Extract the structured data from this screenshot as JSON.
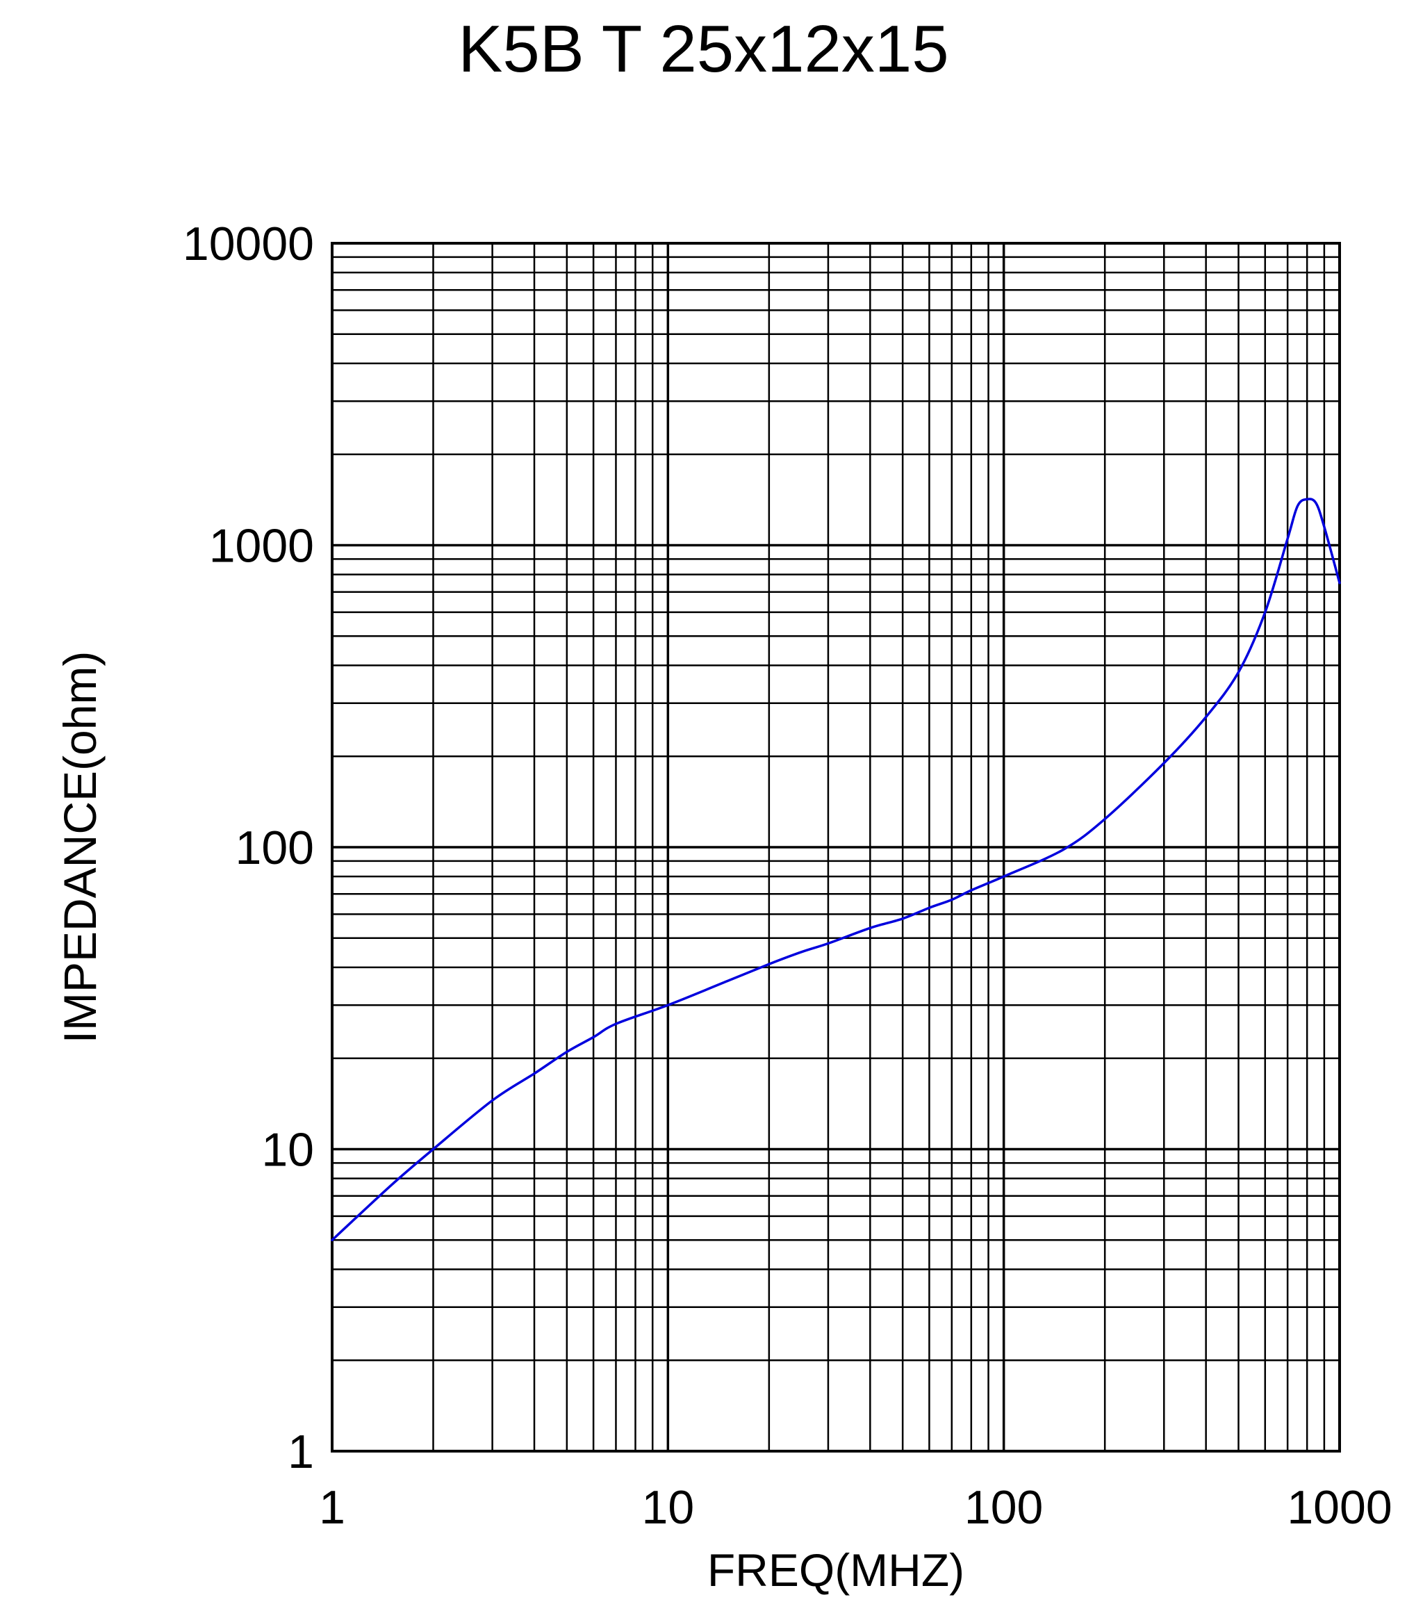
{
  "chart_data": {
    "type": "line",
    "title": "K5B T 25x12x15",
    "xlabel": "FREQ(MHZ)",
    "ylabel": "IMPEDANCE(ohm)",
    "xscale": "log",
    "yscale": "log",
    "xlim": [
      1,
      1000
    ],
    "ylim": [
      1,
      10000
    ],
    "xticks": [
      1,
      10,
      100,
      1000
    ],
    "xtick_labels": [
      "1",
      "10",
      "100",
      "1000"
    ],
    "yticks": [
      1,
      10,
      100,
      1000,
      10000
    ],
    "ytick_labels": [
      "1",
      "10",
      "100",
      "1000",
      "10000"
    ],
    "grid": true,
    "colors": {
      "series": "#0000dd",
      "grid": "#000000",
      "background": "#ffffff"
    },
    "series": [
      {
        "x": [
          1,
          1.5,
          2,
          3,
          4,
          5,
          6,
          7,
          10,
          15,
          20,
          25,
          30,
          40,
          50,
          60,
          70,
          80,
          100,
          150,
          200,
          300,
          400,
          500,
          600,
          700,
          750,
          800,
          850,
          900,
          1000
        ],
        "y": [
          5,
          7.6,
          10,
          14.5,
          17.8,
          21,
          23.5,
          26,
          30,
          36,
          41,
          45,
          48,
          54,
          58,
          63,
          67,
          72,
          80,
          98,
          124,
          190,
          270,
          380,
          600,
          1050,
          1350,
          1420,
          1380,
          1150,
          750
        ]
      }
    ]
  }
}
